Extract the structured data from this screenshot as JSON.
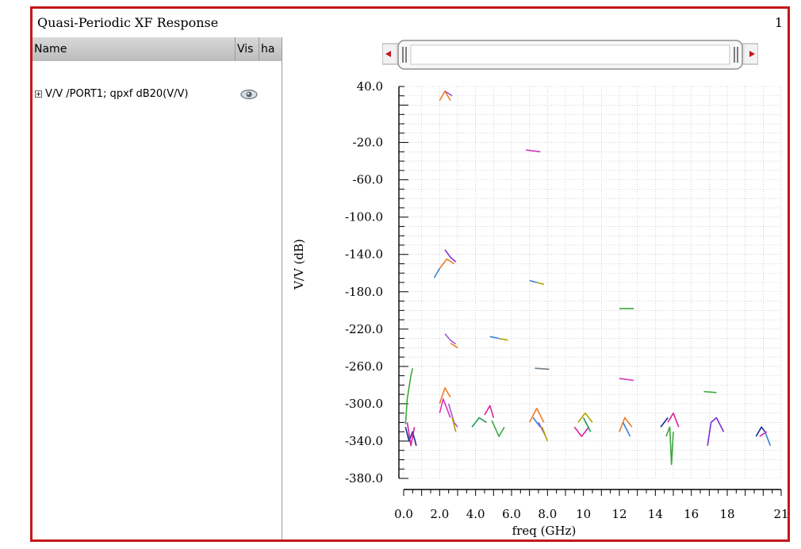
{
  "window": {
    "title": "Quasi-Periodic XF Response",
    "page": "1"
  },
  "trace_list": {
    "columns": [
      "Name",
      "Vis",
      "ha"
    ],
    "items": [
      {
        "label": "V/V /PORT1; qpxf dB20(V/V)",
        "visible_icon": "eye-icon"
      }
    ]
  },
  "colors": {
    "frame": "#c4171c",
    "grid": "#b9b9b9",
    "header": "#c8c8c8"
  },
  "chart_data": {
    "type": "scatter",
    "title": "",
    "xlabel": "freq (GHz)",
    "ylabel": "V/V (dB)",
    "xlim": [
      0,
      21
    ],
    "ylim": [
      -380,
      40
    ],
    "x_ticks": [
      "0.0",
      "2.0",
      "4.0",
      "6.0",
      "8.0",
      "10",
      "12",
      "14",
      "16",
      "18",
      "21"
    ],
    "y_ticks": [
      "40.0",
      "-20.0",
      "-60.0",
      "-100.0",
      "-140.0",
      "-180.0",
      "-220.0",
      "-260.0",
      "-300.0",
      "-340.0",
      "-380.0"
    ],
    "grid": true,
    "series": [
      {
        "color": "#f07d26",
        "points": [
          [
            2.0,
            25
          ],
          [
            2.3,
            35
          ],
          [
            2.6,
            25
          ]
        ]
      },
      {
        "color": "#a355d6",
        "points": [
          [
            2.3,
            35
          ],
          [
            2.7,
            30
          ]
        ]
      },
      {
        "color": "#d633c4",
        "points": [
          [
            6.8,
            -28
          ],
          [
            7.6,
            -30
          ]
        ]
      },
      {
        "color": "#7b2fd6",
        "points": [
          [
            2.3,
            -135
          ],
          [
            2.6,
            -143
          ],
          [
            2.9,
            -148
          ]
        ]
      },
      {
        "color": "#f07d26",
        "points": [
          [
            2.0,
            -155
          ],
          [
            2.4,
            -145
          ],
          [
            2.8,
            -150
          ]
        ]
      },
      {
        "color": "#3b7fd6",
        "points": [
          [
            1.7,
            -165
          ],
          [
            2.0,
            -155
          ]
        ]
      },
      {
        "color": "#3b7fd6",
        "points": [
          [
            7.0,
            -168
          ],
          [
            7.4,
            -170
          ]
        ]
      },
      {
        "color": "#b0a000",
        "points": [
          [
            7.4,
            -170
          ],
          [
            7.8,
            -172
          ]
        ]
      },
      {
        "color": "#3baa3b",
        "points": [
          [
            12.0,
            -198
          ],
          [
            12.8,
            -198
          ]
        ]
      },
      {
        "color": "#a355d6",
        "points": [
          [
            2.3,
            -225
          ],
          [
            2.6,
            -232
          ],
          [
            2.9,
            -236
          ]
        ]
      },
      {
        "color": "#f07d26",
        "points": [
          [
            2.6,
            -235
          ],
          [
            3.0,
            -240
          ]
        ]
      },
      {
        "color": "#3b7fd6",
        "points": [
          [
            4.8,
            -228
          ],
          [
            5.3,
            -230
          ]
        ]
      },
      {
        "color": "#b0a000",
        "points": [
          [
            5.3,
            -230
          ],
          [
            5.8,
            -232
          ]
        ]
      },
      {
        "color": "#6f7d8a",
        "points": [
          [
            7.3,
            -262
          ],
          [
            8.1,
            -263
          ]
        ]
      },
      {
        "color": "#d633c4",
        "points": [
          [
            12.0,
            -273
          ],
          [
            12.8,
            -275
          ]
        ]
      },
      {
        "color": "#3baa3b",
        "points": [
          [
            16.7,
            -287
          ],
          [
            17.4,
            -288
          ]
        ]
      },
      {
        "color": "#3baa3b",
        "points": [
          [
            0.1,
            -322
          ],
          [
            0.2,
            -295
          ],
          [
            0.4,
            -270
          ],
          [
            0.5,
            -262
          ]
        ]
      },
      {
        "color": "#1a2a9a",
        "points": [
          [
            0.1,
            -325
          ],
          [
            0.3,
            -340
          ],
          [
            0.5,
            -330
          ],
          [
            0.7,
            -345
          ]
        ]
      },
      {
        "color": "#d6249a",
        "points": [
          [
            0.2,
            -320
          ],
          [
            0.4,
            -345
          ],
          [
            0.6,
            -325
          ]
        ]
      },
      {
        "color": "#d633c4",
        "points": [
          [
            2.0,
            -310
          ],
          [
            2.2,
            -295
          ],
          [
            2.4,
            -305
          ],
          [
            2.6,
            -315
          ]
        ]
      },
      {
        "color": "#f07d26",
        "points": [
          [
            2.0,
            -300
          ],
          [
            2.3,
            -283
          ],
          [
            2.6,
            -293
          ]
        ]
      },
      {
        "color": "#a355d6",
        "points": [
          [
            2.5,
            -300
          ],
          [
            2.8,
            -320
          ],
          [
            3.0,
            -325
          ]
        ]
      },
      {
        "color": "#b0a000",
        "points": [
          [
            2.7,
            -315
          ],
          [
            2.9,
            -330
          ]
        ]
      },
      {
        "color": "#d6249a",
        "points": [
          [
            4.5,
            -312
          ],
          [
            4.8,
            -302
          ],
          [
            5.0,
            -315
          ]
        ]
      },
      {
        "color": "#1a9a5a",
        "points": [
          [
            3.8,
            -325
          ],
          [
            4.2,
            -315
          ],
          [
            4.6,
            -320
          ]
        ]
      },
      {
        "color": "#3baa3b",
        "points": [
          [
            4.9,
            -318
          ],
          [
            5.3,
            -335
          ],
          [
            5.6,
            -325
          ]
        ]
      },
      {
        "color": "#f07d26",
        "points": [
          [
            7.0,
            -320
          ],
          [
            7.4,
            -305
          ],
          [
            7.8,
            -320
          ]
        ]
      },
      {
        "color": "#a355d6",
        "points": [
          [
            7.5,
            -320
          ],
          [
            7.9,
            -335
          ]
        ]
      },
      {
        "color": "#b0a000",
        "points": [
          [
            7.7,
            -325
          ],
          [
            8.0,
            -340
          ]
        ]
      },
      {
        "color": "#3b7fd6",
        "points": [
          [
            7.2,
            -315
          ],
          [
            7.6,
            -325
          ]
        ]
      },
      {
        "color": "#d6249a",
        "points": [
          [
            9.5,
            -325
          ],
          [
            9.9,
            -335
          ],
          [
            10.3,
            -325
          ]
        ]
      },
      {
        "color": "#b0a000",
        "points": [
          [
            9.7,
            -320
          ],
          [
            10.1,
            -310
          ],
          [
            10.5,
            -320
          ]
        ]
      },
      {
        "color": "#1a9a5a",
        "points": [
          [
            10.0,
            -315
          ],
          [
            10.4,
            -330
          ]
        ]
      },
      {
        "color": "#f07d26",
        "points": [
          [
            12.0,
            -330
          ],
          [
            12.3,
            -315
          ],
          [
            12.7,
            -325
          ]
        ]
      },
      {
        "color": "#3b7fd6",
        "points": [
          [
            12.2,
            -320
          ],
          [
            12.6,
            -335
          ]
        ]
      },
      {
        "color": "#3baa3b",
        "points": [
          [
            14.6,
            -335
          ],
          [
            14.8,
            -325
          ],
          [
            14.9,
            -365
          ],
          [
            15.0,
            -330
          ]
        ]
      },
      {
        "color": "#d6249a",
        "points": [
          [
            14.7,
            -320
          ],
          [
            15.0,
            -310
          ],
          [
            15.3,
            -325
          ]
        ]
      },
      {
        "color": "#1a2a9a",
        "points": [
          [
            14.3,
            -325
          ],
          [
            14.7,
            -315
          ]
        ]
      },
      {
        "color": "#7b2fd6",
        "points": [
          [
            16.9,
            -345
          ],
          [
            17.1,
            -320
          ],
          [
            17.4,
            -315
          ],
          [
            17.8,
            -330
          ]
        ]
      },
      {
        "color": "#1a2a9a",
        "points": [
          [
            19.6,
            -335
          ],
          [
            19.9,
            -325
          ],
          [
            20.1,
            -330
          ]
        ]
      },
      {
        "color": "#d6249a",
        "points": [
          [
            19.8,
            -335
          ],
          [
            20.2,
            -330
          ]
        ]
      },
      {
        "color": "#3b7fd6",
        "points": [
          [
            20.1,
            -330
          ],
          [
            20.4,
            -345
          ]
        ]
      }
    ]
  }
}
